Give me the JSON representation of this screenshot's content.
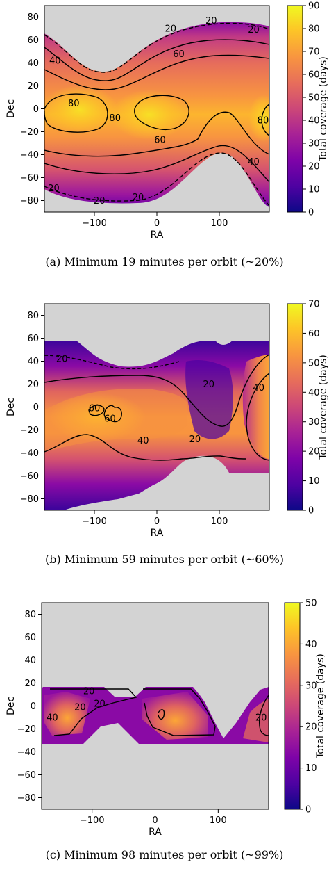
{
  "chart_data": [
    {
      "type": "heatmap",
      "id": "a",
      "caption": "(a) Minimum 19 minutes per orbit (~20%)",
      "xlabel": "RA",
      "ylabel": "Dec",
      "colorbar_label": "Total coverage (days)",
      "xlim": [
        -180,
        180
      ],
      "ylim": [
        -90,
        90
      ],
      "xticks": [
        -100,
        0,
        100
      ],
      "yticks": [
        80,
        60,
        40,
        20,
        0,
        -20,
        -40,
        -60,
        -80
      ],
      "cbar_ticks": [
        90,
        80,
        70,
        60,
        50,
        40,
        30,
        20,
        10,
        0
      ],
      "cbar_range": [
        0,
        90
      ],
      "contour_labels": [
        {
          "text": "20",
          "ra": 22,
          "dec": 70
        },
        {
          "text": "20",
          "ra": 87,
          "dec": 77
        },
        {
          "text": "20",
          "ra": 155,
          "dec": 69
        },
        {
          "text": "40",
          "ra": -163,
          "dec": 42
        },
        {
          "text": "60",
          "ra": 35,
          "dec": 48
        },
        {
          "text": "80",
          "ra": -133,
          "dec": 5
        },
        {
          "text": "80",
          "ra": -67,
          "dec": -8
        },
        {
          "text": "80",
          "ra": 170,
          "dec": -10
        },
        {
          "text": "60",
          "ra": 5,
          "dec": -27
        },
        {
          "text": "40",
          "ra": 155,
          "dec": -46
        },
        {
          "text": "20",
          "ra": -165,
          "dec": -69
        },
        {
          "text": "20",
          "ra": -92,
          "dec": -80
        },
        {
          "text": "20",
          "ra": -30,
          "dec": -77
        }
      ]
    },
    {
      "type": "heatmap",
      "id": "b",
      "caption": "(b) Minimum 59 minutes per orbit (~60%)",
      "xlabel": "RA",
      "ylabel": "Dec",
      "colorbar_label": "Total coverage (days)",
      "xlim": [
        -180,
        180
      ],
      "ylim": [
        -90,
        90
      ],
      "xticks": [
        -100,
        0,
        100
      ],
      "yticks": [
        80,
        60,
        40,
        20,
        0,
        -20,
        -40,
        -60,
        -80
      ],
      "cbar_ticks": [
        70,
        60,
        50,
        40,
        30,
        20,
        10,
        0
      ],
      "cbar_range": [
        0,
        70
      ],
      "contour_labels": [
        {
          "text": "20",
          "ra": -152,
          "dec": 42
        },
        {
          "text": "60",
          "ra": -100,
          "dec": -1
        },
        {
          "text": "60",
          "ra": -75,
          "dec": -10
        },
        {
          "text": "20",
          "ra": 83,
          "dec": 20
        },
        {
          "text": "40",
          "ra": 163,
          "dec": 17
        },
        {
          "text": "40",
          "ra": -22,
          "dec": -29
        },
        {
          "text": "20",
          "ra": 61,
          "dec": -28
        }
      ]
    },
    {
      "type": "heatmap",
      "id": "c",
      "caption": "(c) Minimum 98 minutes per orbit (~99%)",
      "xlabel": "RA",
      "ylabel": "Dec",
      "colorbar_label": "Total coverage (days)",
      "xlim": [
        -180,
        180
      ],
      "ylim": [
        -90,
        90
      ],
      "xticks": [
        -100,
        0,
        100
      ],
      "yticks": [
        80,
        60,
        40,
        20,
        0,
        -20,
        -40,
        -60,
        -80
      ],
      "cbar_ticks": [
        50,
        40,
        30,
        20,
        10,
        0
      ],
      "cbar_range": [
        0,
        50
      ],
      "contour_labels": [
        {
          "text": "20",
          "ra": -105,
          "dec": 13
        },
        {
          "text": "40",
          "ra": -163,
          "dec": -10
        },
        {
          "text": "20",
          "ra": -119,
          "dec": -1
        },
        {
          "text": "20",
          "ra": -88,
          "dec": 2
        },
        {
          "text": "20",
          "ra": 168,
          "dec": -10
        }
      ]
    }
  ]
}
